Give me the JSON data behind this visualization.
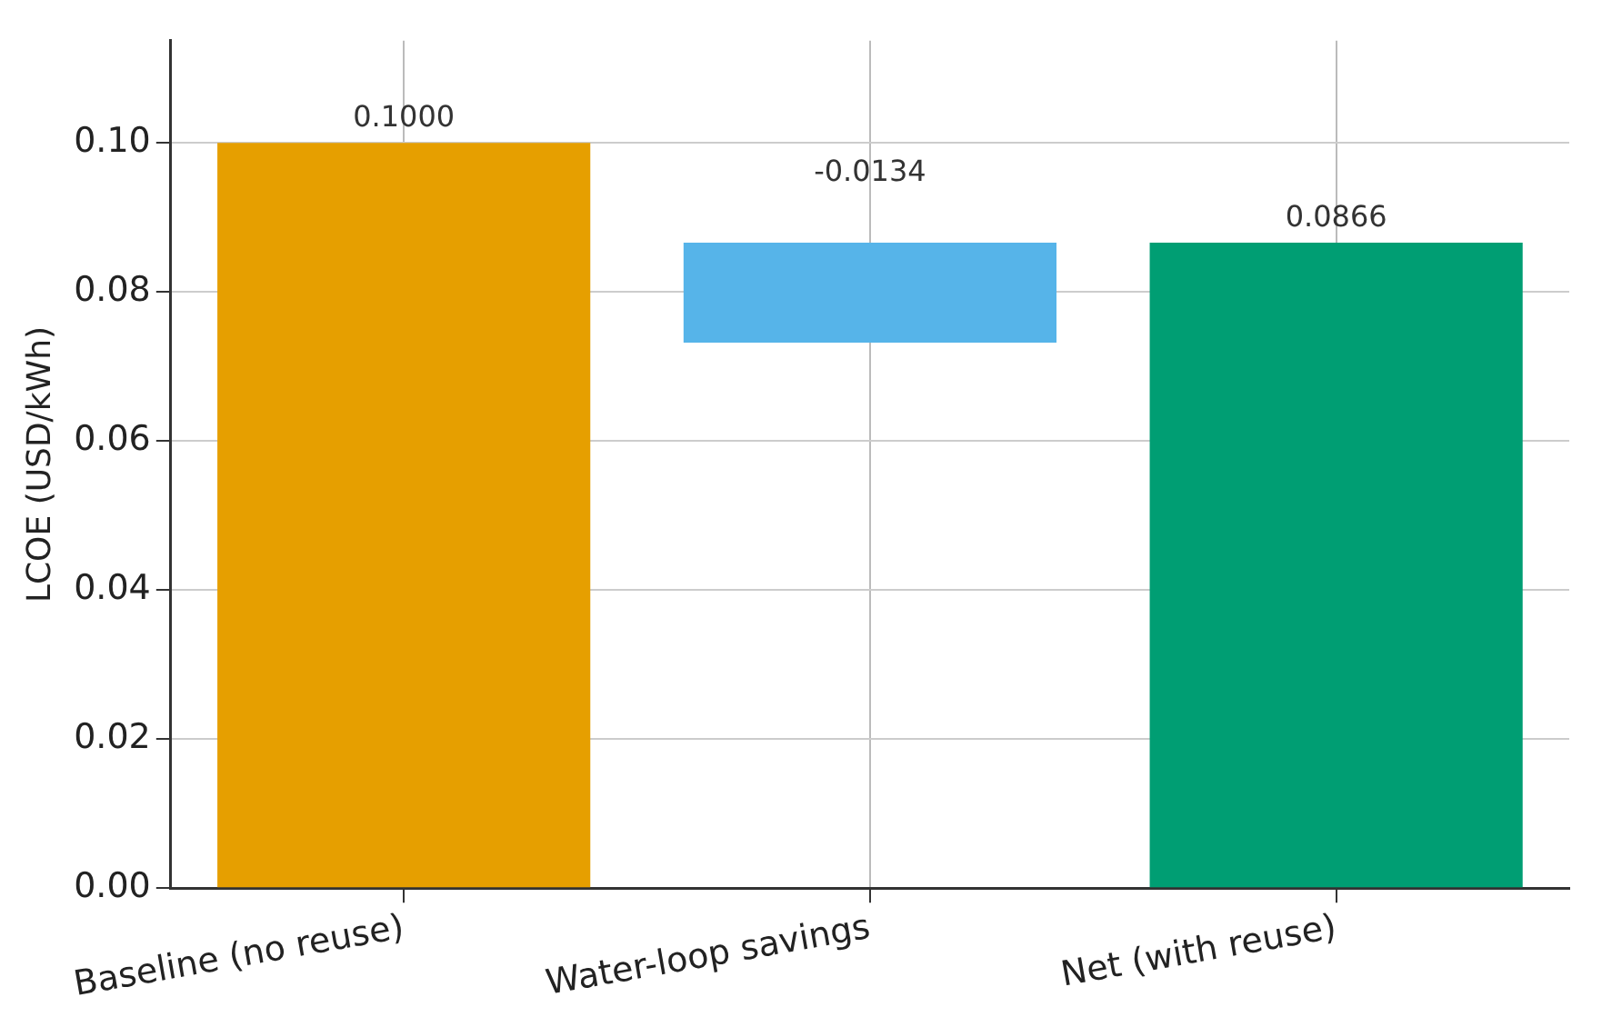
{
  "chart_data": {
    "type": "bar",
    "ylabel": "LCOE (USD/kWh)",
    "categories": [
      "Baseline (no reuse)",
      "Water-loop savings",
      "Net (with reuse)"
    ],
    "values": [
      0.1,
      -0.0134,
      0.0866
    ],
    "base": [
      0,
      0.0866,
      0
    ],
    "colors": [
      "#e69f00",
      "#56b4e9",
      "#009e73"
    ],
    "value_labels": [
      "0.1000",
      "-0.0134",
      "0.0866"
    ],
    "ylim": [
      0,
      0.1137
    ],
    "yticks": [
      {
        "value": 0,
        "label": "0.00"
      },
      {
        "value": 0.02,
        "label": "0.02"
      },
      {
        "value": 0.04,
        "label": "0.04"
      },
      {
        "value": 0.06,
        "label": "0.06"
      },
      {
        "value": 0.08,
        "label": "0.08"
      },
      {
        "value": 0.1,
        "label": "0.10"
      }
    ],
    "grid": true
  }
}
